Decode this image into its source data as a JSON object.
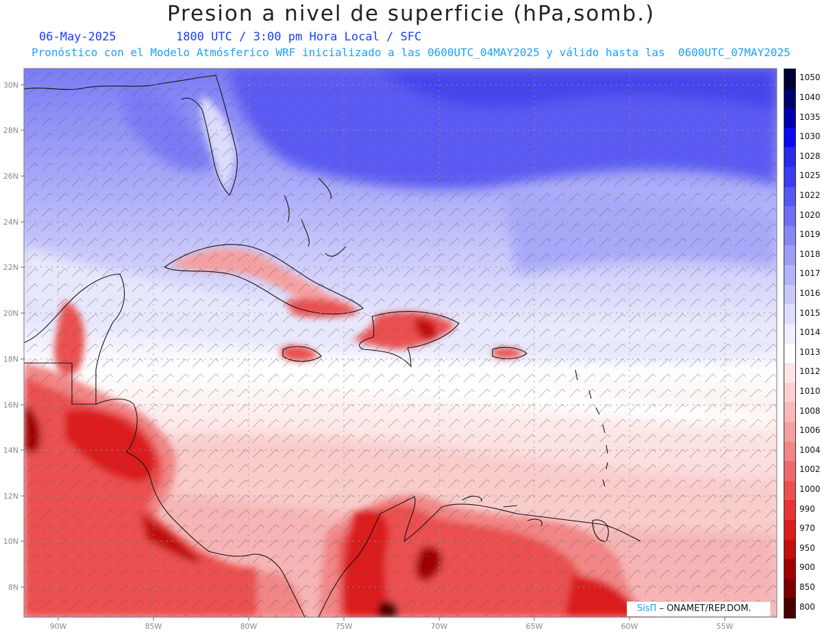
{
  "header": {
    "title": "Presion a nivel de superficie (hPa,somb.)",
    "date": "06-May-2025",
    "time_info": "1800 UTC / 3:00 pm Hora Local / SFC",
    "forecast_info": "Pronóstico con el Modelo Atmósferico WRF inicializado a las 0600UTC_04MAY2025 y válido hasta las  0600UTC_07MAY2025"
  },
  "axes": {
    "lat_labels": [
      "30N",
      "28N",
      "26N",
      "24N",
      "22N",
      "20N",
      "18N",
      "16N",
      "14N",
      "12N",
      "10N",
      "8N"
    ],
    "lon_labels": [
      "90W",
      "85W",
      "80W",
      "75W",
      "70W",
      "65W",
      "60W",
      "55W"
    ]
  },
  "legend": {
    "levels": [
      "1050",
      "1040",
      "1035",
      "1030",
      "1028",
      "1025",
      "1022",
      "1020",
      "1019",
      "1018",
      "1017",
      "1016",
      "1015",
      "1014",
      "1013",
      "1012",
      "1010",
      "1008",
      "1006",
      "1004",
      "1002",
      "1000",
      "990",
      "970",
      "950",
      "900",
      "850",
      "800"
    ],
    "colors": [
      "#000033",
      "#00006e",
      "#0000b0",
      "#0a0af5",
      "#2a2ae8",
      "#3c3cf0",
      "#5757f4",
      "#6f6ff6",
      "#8787f7",
      "#9d9df8",
      "#b3b3fa",
      "#c8c8fb",
      "#dcdcfc",
      "#eeeefe",
      "#ffffff",
      "#fde4e4",
      "#fbcfcf",
      "#f8b9b9",
      "#f5a0a0",
      "#f28585",
      "#ef6a6a",
      "#eb4f4f",
      "#e63434",
      "#dc1c1c",
      "#c40d0d",
      "#a10000",
      "#7d0000",
      "#4a0000"
    ]
  },
  "credit": {
    "logo": "SisΠ",
    "text": "– ONAMET/REP.DOM."
  }
}
